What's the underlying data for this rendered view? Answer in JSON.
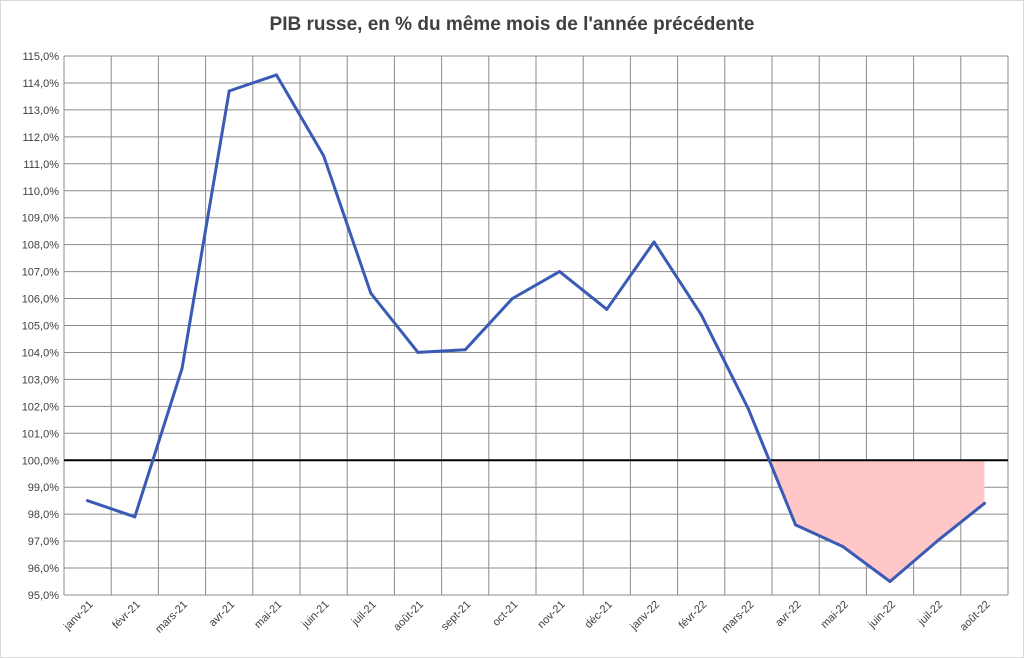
{
  "chart_data": {
    "type": "line",
    "title": "PIB russe, en % du même mois de l'année précédente",
    "xlabel": "",
    "ylabel": "",
    "ylim": [
      95,
      115
    ],
    "y_tick_labels": [
      "95,0%",
      "96,0%",
      "97,0%",
      "98,0%",
      "99,0%",
      "100,0%",
      "101,0%",
      "102,0%",
      "103,0%",
      "104,0%",
      "105,0%",
      "106,0%",
      "107,0%",
      "108,0%",
      "109,0%",
      "110,0%",
      "111,0%",
      "112,0%",
      "113,0%",
      "114,0%",
      "115,0%"
    ],
    "categories": [
      "janv-21",
      "févr-21",
      "mars-21",
      "avr-21",
      "mai-21",
      "juin-21",
      "juil-21",
      "août-21",
      "sept-21",
      "oct-21",
      "nov-21",
      "déc-21",
      "janv-22",
      "févr-22",
      "mars-22",
      "avr-22",
      "mai-22",
      "juin-22",
      "juil-22",
      "août-22"
    ],
    "series": [
      {
        "values": [
          98.5,
          97.9,
          103.4,
          113.7,
          114.3,
          111.3,
          106.2,
          104.0,
          104.1,
          106.0,
          107.0,
          105.6,
          108.1,
          105.4,
          101.9,
          97.6,
          96.8,
          95.5,
          97.0,
          98.4
        ]
      }
    ],
    "reference_line": 100,
    "shaded_below_reference": {
      "from_category": "mars-22",
      "to_category": "août-22"
    },
    "grid": true,
    "legend": "none",
    "colors": {
      "line": "#3a5bb5",
      "shade": "#ffc7c7",
      "grid": "#8c8c8c",
      "reference": "#000000"
    }
  }
}
